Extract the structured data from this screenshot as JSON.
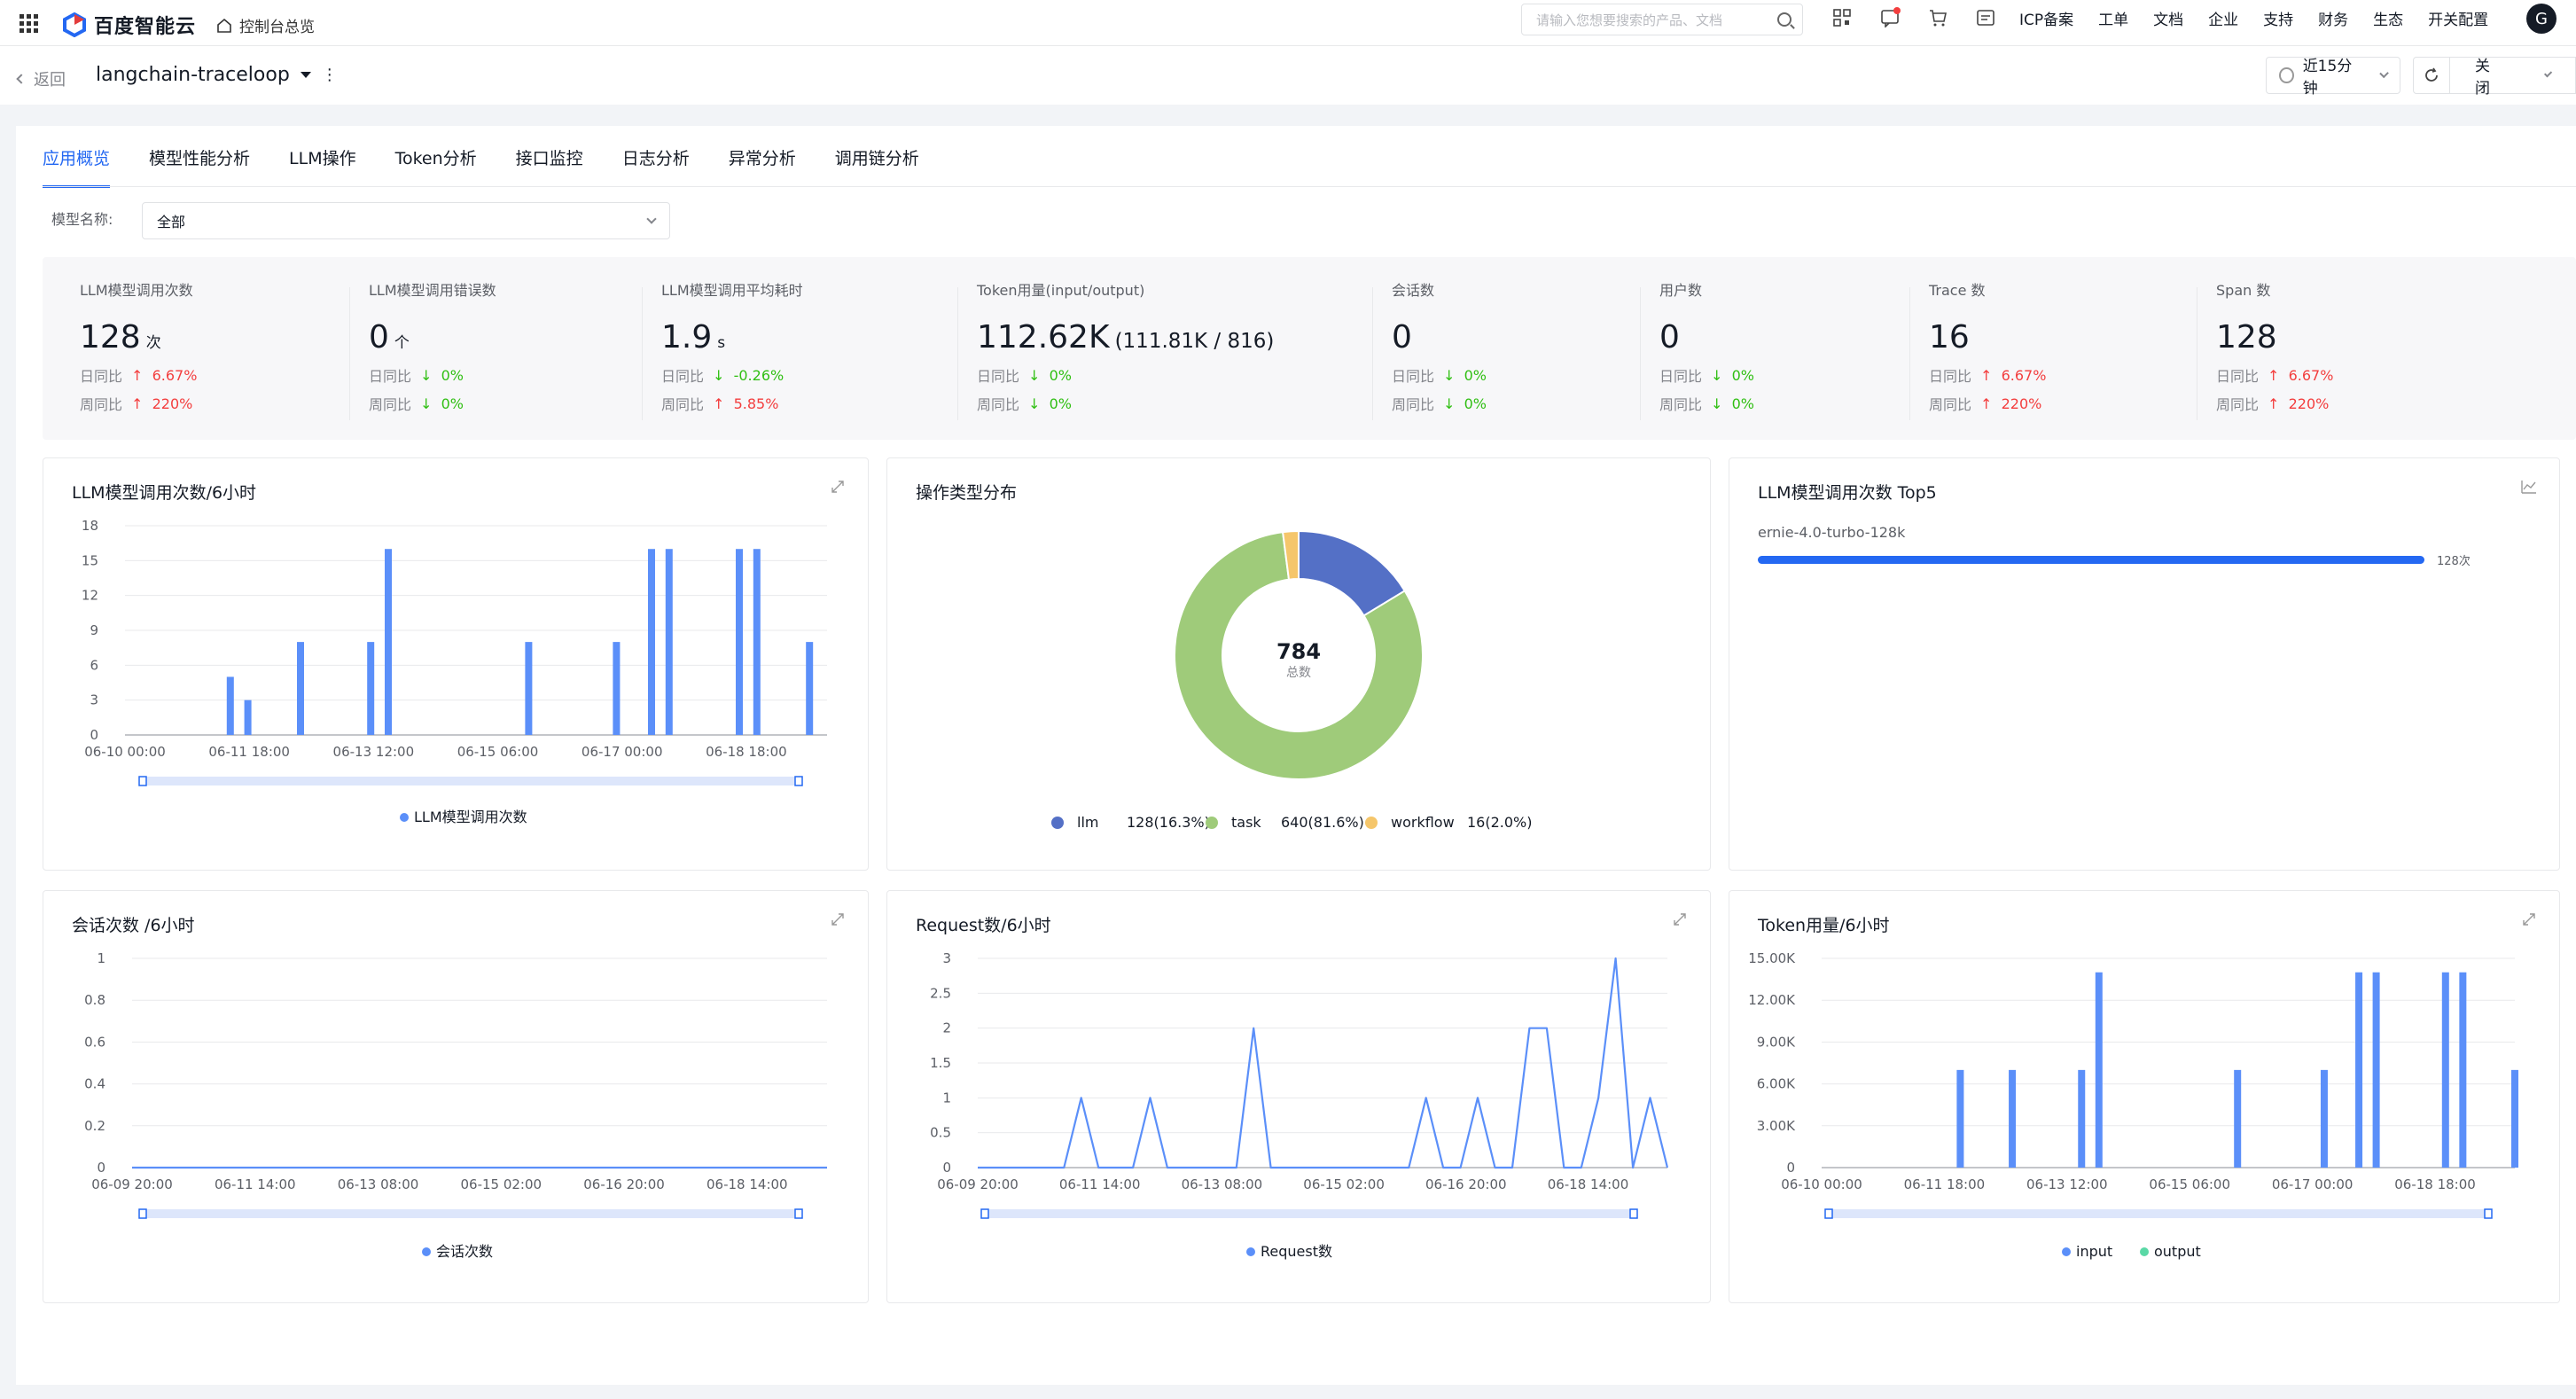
{
  "topbar": {
    "brand": "百度智能云",
    "console_link": "控制台总览",
    "search_placeholder": "请输入您想要搜索的产品、文档",
    "menu": [
      "ICP备案",
      "工单",
      "文档",
      "企业",
      "支持",
      "财务",
      "生态",
      "开关配置"
    ],
    "avatar": "G"
  },
  "subbar": {
    "back": "返回",
    "app_name": "langchain-traceloop",
    "time_range": "近15分钟",
    "auto_refresh": "关闭"
  },
  "tabs": [
    "应用概览",
    "模型性能分析",
    "LLM操作",
    "Token分析",
    "接口监控",
    "日志分析",
    "异常分析",
    "调用链分析"
  ],
  "filter": {
    "label": "模型名称:",
    "value": "全部"
  },
  "stats": [
    {
      "label": "LLM模型调用次数",
      "value": "128",
      "unit": "次",
      "day_label": "日同比",
      "day": "6.67%",
      "day_dir": "up",
      "week_label": "周同比",
      "week": "220%",
      "week_dir": "up"
    },
    {
      "label": "LLM模型调用错误数",
      "value": "0",
      "unit": "个",
      "day_label": "日同比",
      "day": "0%",
      "day_dir": "down",
      "week_label": "周同比",
      "week": "0%",
      "week_dir": "down"
    },
    {
      "label": "LLM模型调用平均耗时",
      "value": "1.9",
      "unit": "s",
      "day_label": "日同比",
      "day": "-0.26%",
      "day_dir": "down",
      "week_label": "周同比",
      "week": "5.85%",
      "week_dir": "up"
    },
    {
      "label": "Token用量(input/output)",
      "value": "112.62K",
      "unit": "(111.81K / 816)",
      "day_label": "日同比",
      "day": "0%",
      "day_dir": "down",
      "week_label": "周同比",
      "week": "0%",
      "week_dir": "down"
    },
    {
      "label": "会话数",
      "value": "0",
      "unit": "",
      "day_label": "日同比",
      "day": "0%",
      "day_dir": "down",
      "week_label": "周同比",
      "week": "0%",
      "week_dir": "down"
    },
    {
      "label": "用户数",
      "value": "0",
      "unit": "",
      "day_label": "日同比",
      "day": "0%",
      "day_dir": "down",
      "week_label": "周同比",
      "week": "0%",
      "week_dir": "down"
    },
    {
      "label": "Trace 数",
      "value": "16",
      "unit": "",
      "day_label": "日同比",
      "day": "6.67%",
      "day_dir": "up",
      "week_label": "周同比",
      "week": "220%",
      "week_dir": "up"
    },
    {
      "label": "Span 数",
      "value": "128",
      "unit": "",
      "day_label": "日同比",
      "day": "6.67%",
      "day_dir": "up",
      "week_label": "周同比",
      "week": "220%",
      "week_dir": "up"
    }
  ],
  "colors": {
    "primary": "#2468f2",
    "bar": "#5b8ff9",
    "llm": "#5470c6",
    "task": "#9fcb7a",
    "workflow": "#f5c66b",
    "up": "#f33e3e",
    "down": "#30bf13"
  },
  "cards": {
    "llm_calls": {
      "title": "LLM模型调用次数/6小时",
      "legend": "LLM模型调用次数"
    },
    "op_types": {
      "title": "操作类型分布",
      "center_value": "784",
      "center_label": "总数"
    },
    "top5": {
      "title": "LLM模型调用次数 Top5",
      "model": "ernie-4.0-turbo-128k",
      "count_label": "128次",
      "fraction": 1.0
    },
    "sessions": {
      "title": "会话次数 /6小时",
      "legend": "会话次数"
    },
    "requests": {
      "title": "Request数/6小时",
      "legend": "Request数"
    },
    "tokens": {
      "title": "Token用量/6小时",
      "legend_input": "input",
      "legend_output": "output"
    }
  },
  "chart_data": [
    {
      "type": "bar",
      "title": "LLM模型调用次数/6小时",
      "ylim": [
        0,
        18
      ],
      "yticks": [
        "18",
        "15",
        "12",
        "9",
        "6",
        "3",
        "0"
      ],
      "xticks": [
        "06-10 00:00",
        "06-11 18:00",
        "06-13 12:00",
        "06-15 06:00",
        "06-17 00:00",
        "06-18 18:00"
      ],
      "x_count": 40,
      "series": [
        {
          "name": "LLM模型调用次数",
          "points": [
            [
              6,
              5
            ],
            [
              7,
              3
            ],
            [
              10,
              8
            ],
            [
              14,
              8
            ],
            [
              15,
              16
            ],
            [
              23,
              8
            ],
            [
              28,
              8
            ],
            [
              30,
              16
            ],
            [
              31,
              16
            ],
            [
              35,
              16
            ],
            [
              36,
              16
            ],
            [
              39,
              8
            ]
          ]
        }
      ]
    },
    {
      "type": "pie",
      "title": "操作类型分布",
      "slices": [
        {
          "name": "llm",
          "value": 128,
          "label": "128(16.3%)"
        },
        {
          "name": "task",
          "value": 640,
          "label": "640(81.6%)"
        },
        {
          "name": "workflow",
          "value": 16,
          "label": "16(2.0%)"
        }
      ]
    },
    {
      "type": "line",
      "title": "会话次数 /6小时",
      "ylim": [
        0,
        1
      ],
      "yticks": [
        "1",
        "0.8",
        "0.6",
        "0.4",
        "0.2",
        "0"
      ],
      "xticks": [
        "06-09 20:00",
        "06-11 14:00",
        "06-13 08:00",
        "06-15 02:00",
        "06-16 20:00",
        "06-18 14:00"
      ],
      "series": [
        {
          "name": "会话次数",
          "values": [
            0,
            0,
            0,
            0,
            0,
            0,
            0,
            0,
            0,
            0,
            0,
            0,
            0,
            0,
            0,
            0,
            0,
            0,
            0,
            0,
            0,
            0,
            0,
            0,
            0,
            0,
            0,
            0,
            0,
            0,
            0,
            0,
            0,
            0,
            0,
            0,
            0,
            0,
            0,
            0,
            0
          ]
        }
      ]
    },
    {
      "type": "line",
      "title": "Request数/6小时",
      "ylim": [
        0,
        3
      ],
      "yticks": [
        "3",
        "2.5",
        "2",
        "1.5",
        "1",
        "0.5",
        "0"
      ],
      "xticks": [
        "06-09 20:00",
        "06-11 14:00",
        "06-13 08:00",
        "06-15 02:00",
        "06-16 20:00",
        "06-18 14:00"
      ],
      "series": [
        {
          "name": "Request数",
          "values": [
            0,
            0,
            0,
            0,
            0,
            0,
            1,
            0,
            0,
            0,
            1,
            0,
            0,
            0,
            0,
            0,
            2,
            0,
            0,
            0,
            0,
            0,
            0,
            0,
            0,
            0,
            1,
            0,
            0,
            1,
            0,
            0,
            2,
            2,
            0,
            0,
            1,
            3,
            0,
            1,
            0
          ]
        }
      ]
    },
    {
      "type": "bar",
      "title": "Token用量/6小时",
      "ylim": [
        0,
        15000
      ],
      "yticks": [
        "15.00K",
        "12.00K",
        "9.00K",
        "6.00K",
        "3.00K",
        "0"
      ],
      "xticks": [
        "06-10 00:00",
        "06-11 18:00",
        "06-13 12:00",
        "06-15 06:00",
        "06-17 00:00",
        "06-18 18:00"
      ],
      "x_count": 40,
      "series": [
        {
          "name": "input",
          "points": [
            [
              8,
              7000
            ],
            [
              11,
              7000
            ],
            [
              15,
              7000
            ],
            [
              16,
              14000
            ],
            [
              24,
              7000
            ],
            [
              29,
              7000
            ],
            [
              31,
              14000
            ],
            [
              32,
              14000
            ],
            [
              36,
              14000
            ],
            [
              37,
              14000
            ],
            [
              40,
              7000
            ]
          ]
        },
        {
          "name": "output",
          "points": []
        }
      ]
    }
  ]
}
